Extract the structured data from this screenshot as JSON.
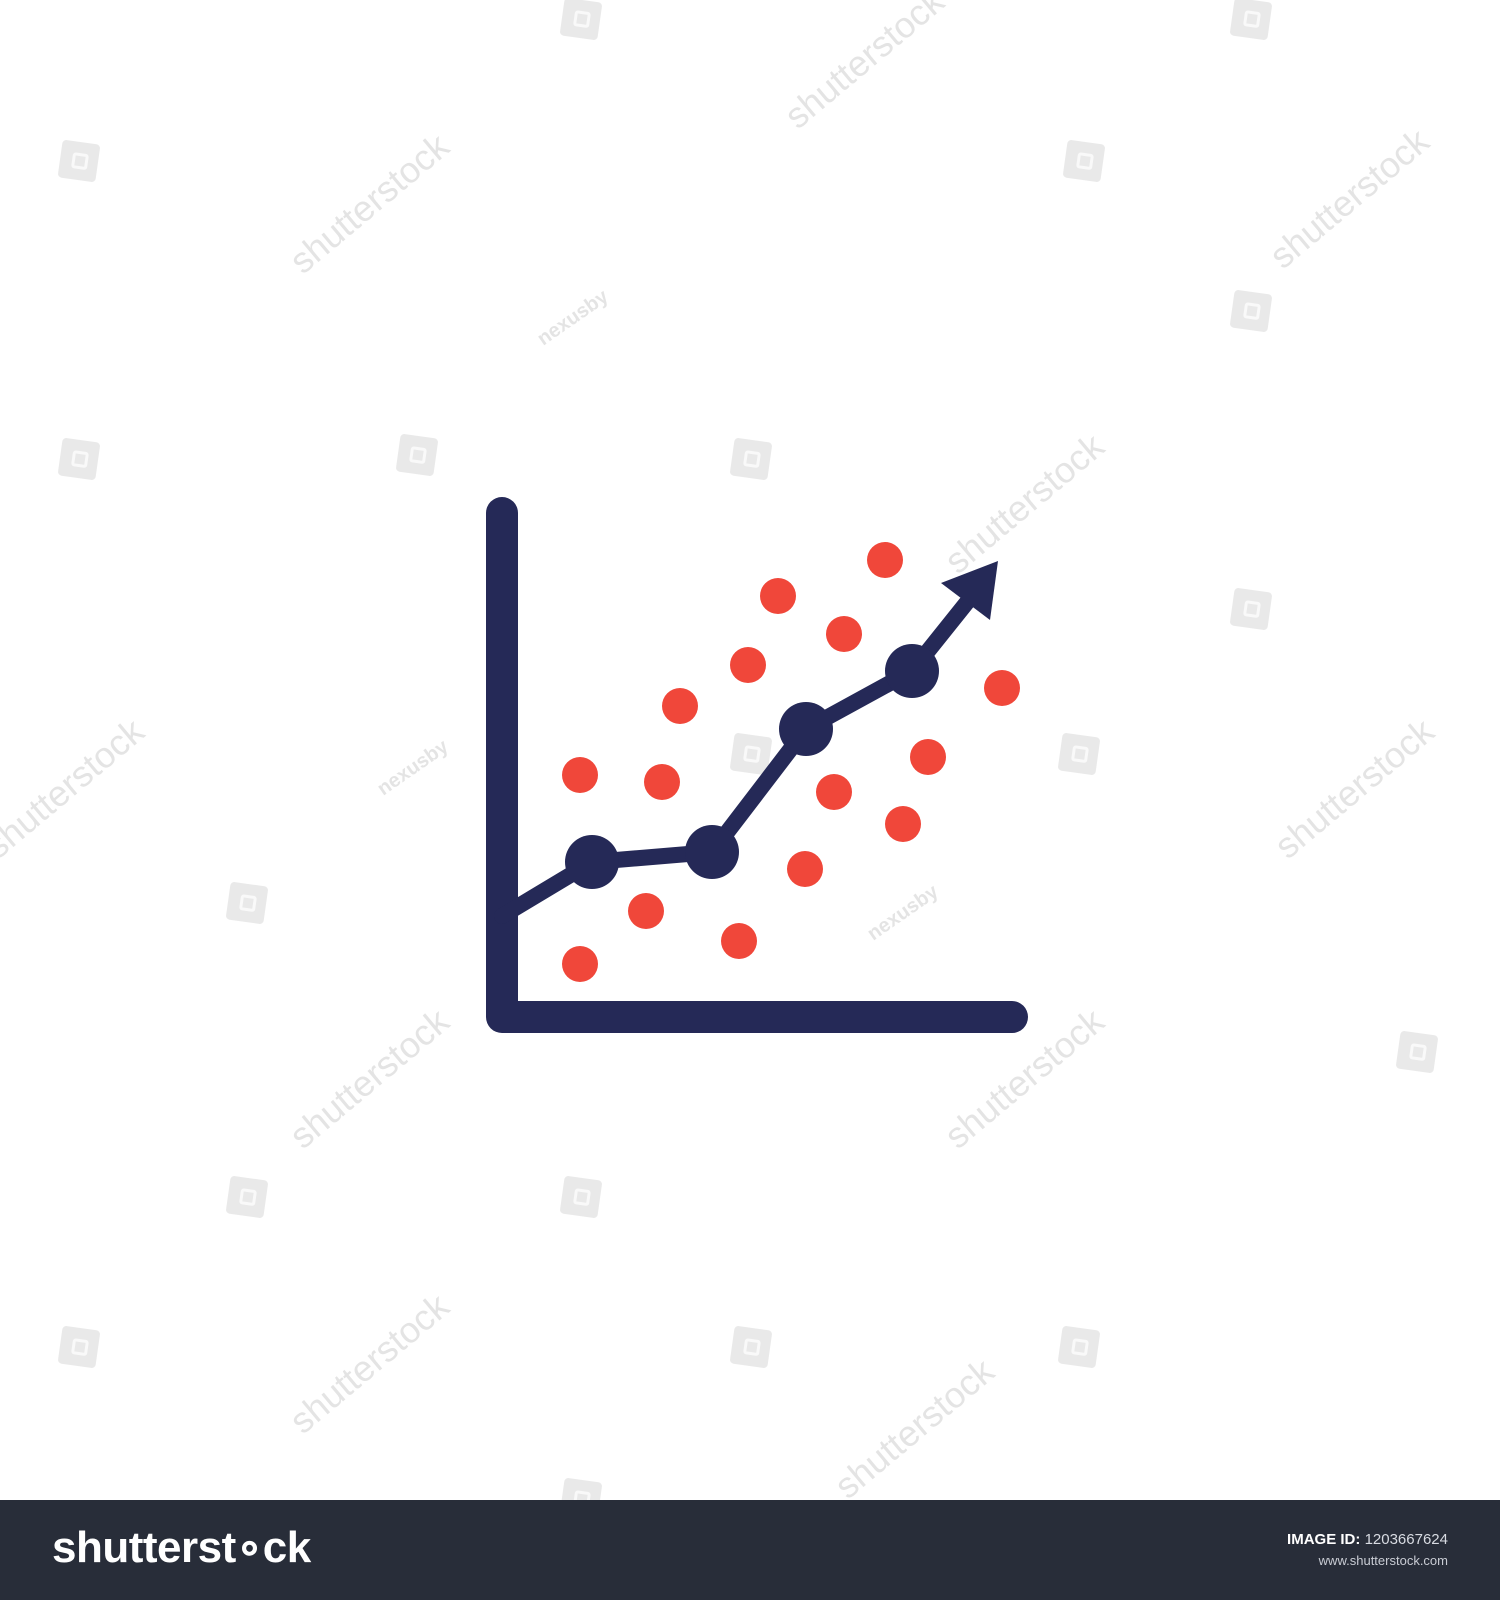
{
  "icon": {
    "name": "chart-with-growth-trend-and-data-points",
    "colors": {
      "axis": "#252957",
      "trend": "#252957",
      "scatter": "#f0473a",
      "background": "#ffffff"
    }
  },
  "watermark": {
    "brand_text": "shutterstock",
    "author_text": "nexusby",
    "color": "#cdcdcd"
  },
  "footer": {
    "logo_text": "shutterst∘ck",
    "image_id_label": "IMAGE ID:",
    "image_id": "1203667624",
    "url": "www.shutterstock.com",
    "background": "#282d39"
  }
}
